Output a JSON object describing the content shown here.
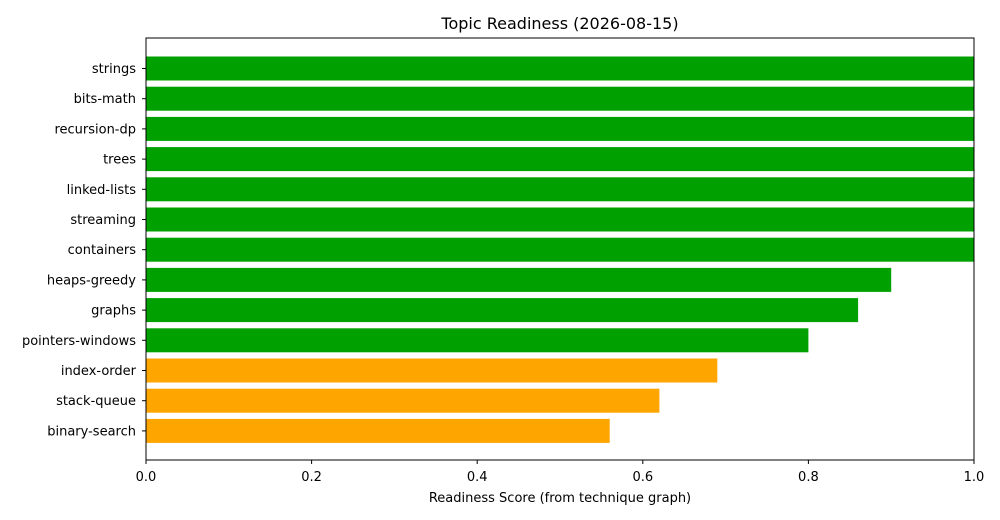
{
  "chart_data": {
    "type": "bar",
    "orientation": "horizontal",
    "title": "Topic Readiness (2026-08-15)",
    "xlabel": "Readiness Score (from technique graph)",
    "ylabel": "",
    "xlim": [
      0,
      1.0
    ],
    "xticks": [
      "0.0",
      "0.2",
      "0.4",
      "0.6",
      "0.8",
      "1.0"
    ],
    "grid": false,
    "categories": [
      "strings",
      "bits-math",
      "recursion-dp",
      "trees",
      "linked-lists",
      "streaming",
      "containers",
      "heaps-greedy",
      "graphs",
      "pointers-windows",
      "index-order",
      "stack-queue",
      "binary-search"
    ],
    "values": [
      1.0,
      1.0,
      1.0,
      1.0,
      1.0,
      1.0,
      1.0,
      0.9,
      0.86,
      0.8,
      0.69,
      0.62,
      0.56
    ],
    "colors": [
      "#00a000",
      "#00a000",
      "#00a000",
      "#00a000",
      "#00a000",
      "#00a000",
      "#00a000",
      "#00a000",
      "#00a000",
      "#00a000",
      "#ffa500",
      "#ffa500",
      "#ffa500"
    ]
  }
}
